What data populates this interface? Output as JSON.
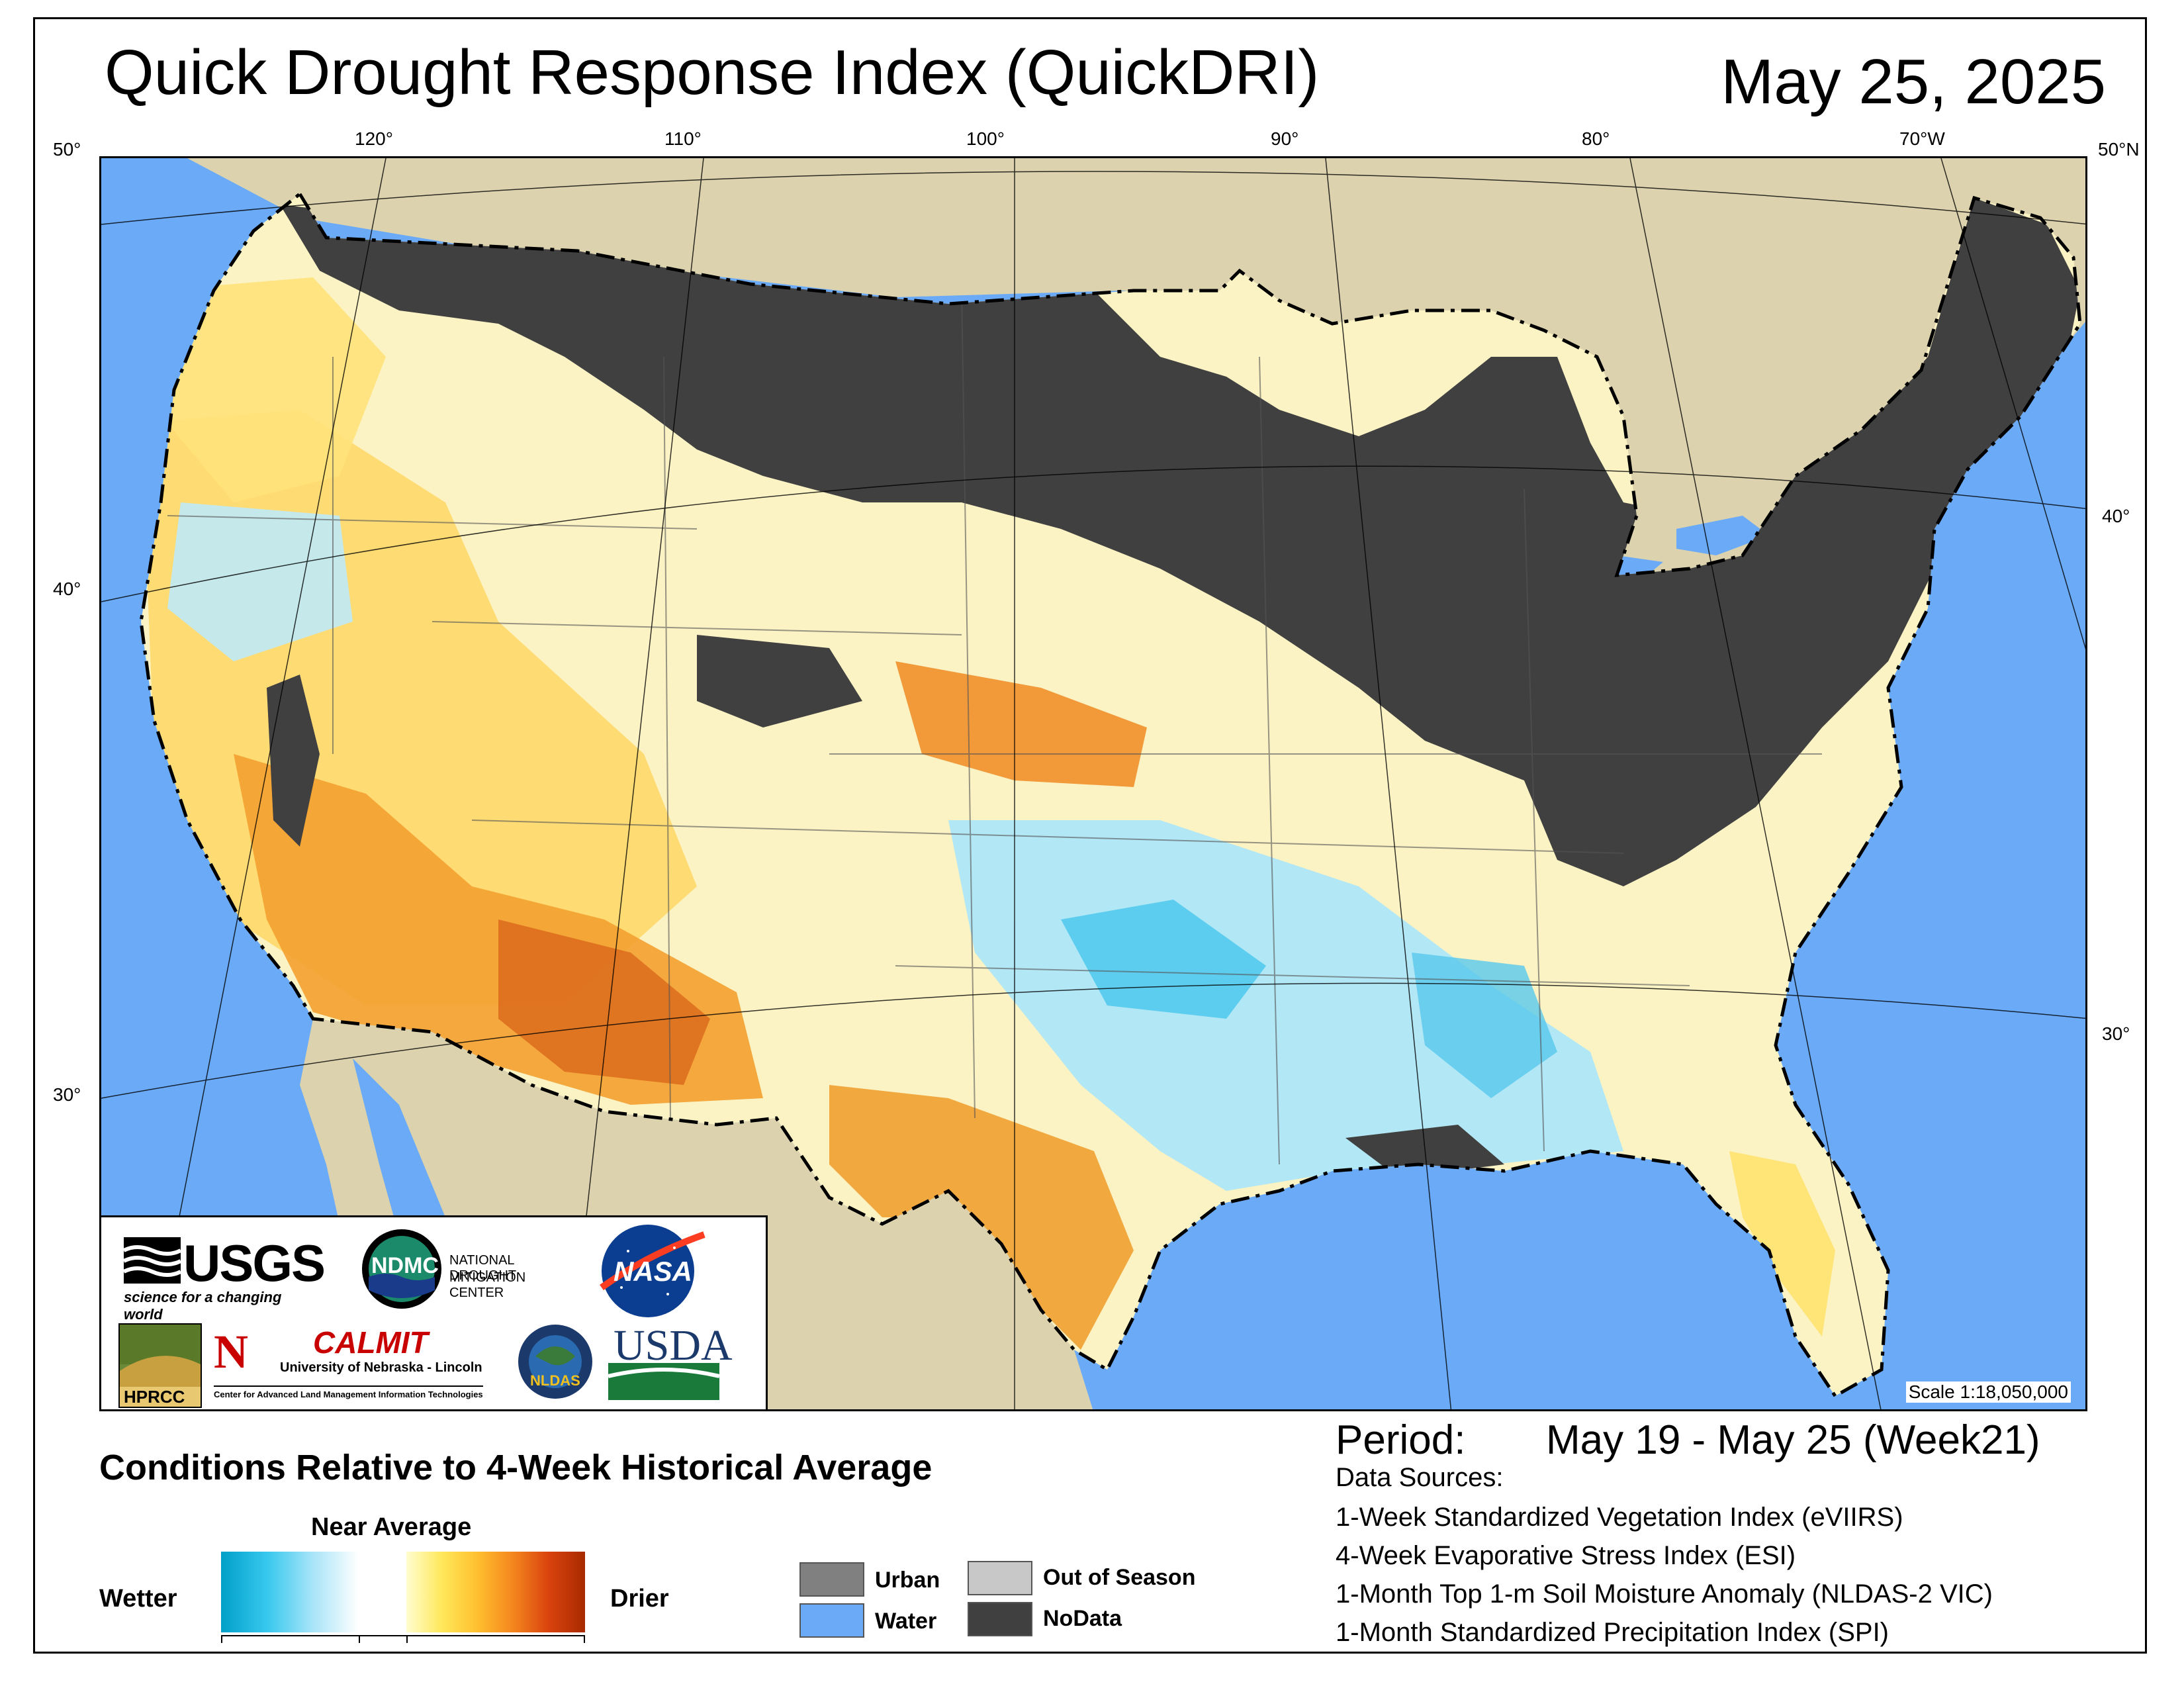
{
  "title": "Quick Drought Response Index (QuickDRI)",
  "date": "May 25, 2025",
  "map": {
    "longitude_labels": [
      "120°",
      "110°",
      "100°",
      "90°",
      "80°",
      "70°W"
    ],
    "latitude_labels_left": [
      "50°",
      "40°",
      "30°"
    ],
    "latitude_labels_right": [
      "50°N",
      "40°",
      "30°"
    ],
    "scale": "Scale 1:18,050,000",
    "colors": {
      "water": "#6aaaf6",
      "land_outside": "#dcd3ae",
      "nodata": "#404040",
      "urban": "#808080",
      "out_of_season": "#c8c8c8"
    }
  },
  "logos": {
    "usgs": "USGS",
    "usgs_tagline": "science for a changing world",
    "ndmc": "NDMC",
    "ndmc_name_1": "NATIONAL DROUGHT",
    "ndmc_name_2": "MITIGATION CENTER",
    "nasa": "NASA",
    "hprcc": "HPRCC",
    "calmit": "CALMIT",
    "calmit_univ": "University of Nebraska - Lincoln",
    "calmit_full": "Center for Advanced Land Management Information Technologies",
    "nldas": "NLDAS",
    "usda": "USDA"
  },
  "legend": {
    "title": "Conditions Relative to 4-Week Historical Average",
    "near_average": "Near Average",
    "wetter": "Wetter",
    "drier": "Drier",
    "items": [
      {
        "label": "Urban",
        "color": "#808080"
      },
      {
        "label": "Out of Season",
        "color": "#c8c8c8"
      },
      {
        "label": "Water",
        "color": "#6aaaf6"
      },
      {
        "label": "NoData",
        "color": "#404040"
      }
    ]
  },
  "period": {
    "label": "Period:",
    "value": "May 19 - May 25 (Week21)"
  },
  "data_sources": {
    "label": "Data Sources:",
    "items": [
      "1-Week Standardized Vegetation Index (eVIIRS)",
      "4-Week Evaporative Stress Index (ESI)",
      "1-Month Top 1-m Soil Moisture Anomaly (NLDAS-2 VIC)",
      "1-Month Standardized Precipitation Index (SPI)"
    ]
  }
}
